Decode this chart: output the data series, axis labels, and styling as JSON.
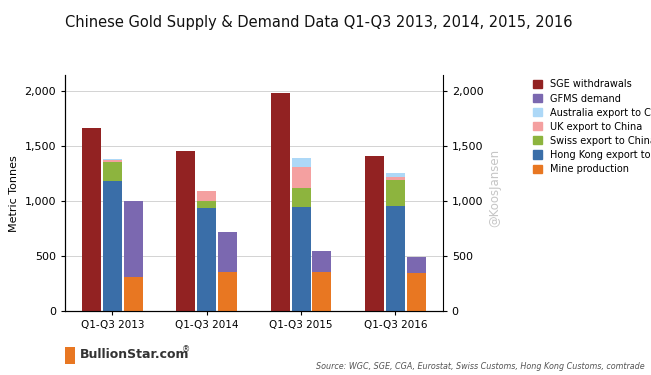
{
  "title": "Chinese Gold Supply & Demand Data Q1-Q3 2013, 2014, 2015, 2016",
  "ylabel": "Metric Tonnes",
  "categories": [
    "Q1-Q3 2013",
    "Q1-Q3 2014",
    "Q1-Q3 2015",
    "Q1-Q3 2016"
  ],
  "ylim": [
    0,
    2150
  ],
  "yticks": [
    0,
    500,
    1000,
    1500,
    2000
  ],
  "sge_withdrawals": [
    1670,
    1455,
    1990,
    1410
  ],
  "gfms_demand_total": [
    1005,
    725,
    545,
    490
  ],
  "mine_production": [
    315,
    355,
    355,
    350
  ],
  "hk_export_total": [
    1185,
    940,
    950,
    960
  ],
  "swiss_above_hk": [
    175,
    60,
    175,
    235
  ],
  "uk_above_swiss": [
    20,
    90,
    190,
    30
  ],
  "aus_above_uk": [
    10,
    0,
    80,
    30
  ],
  "colors": {
    "sge": "#922222",
    "gfms": "#7B68B0",
    "mine": "#E87722",
    "hk": "#3A6EA8",
    "swiss": "#8DB43E",
    "uk": "#F4A0A0",
    "australia": "#ADD8F7"
  },
  "source_text": "Source: WGC, SGE, CGA, Eurostat, Swiss Customs, Hong Kong Customs, comtrade",
  "watermark": "@KoosJansen",
  "background_color": "#FFFFFF",
  "plot_bg": "#FFFFFF",
  "bullionstar_color": "#E87722",
  "bar_width": 0.2,
  "bar_gap": 0.02
}
